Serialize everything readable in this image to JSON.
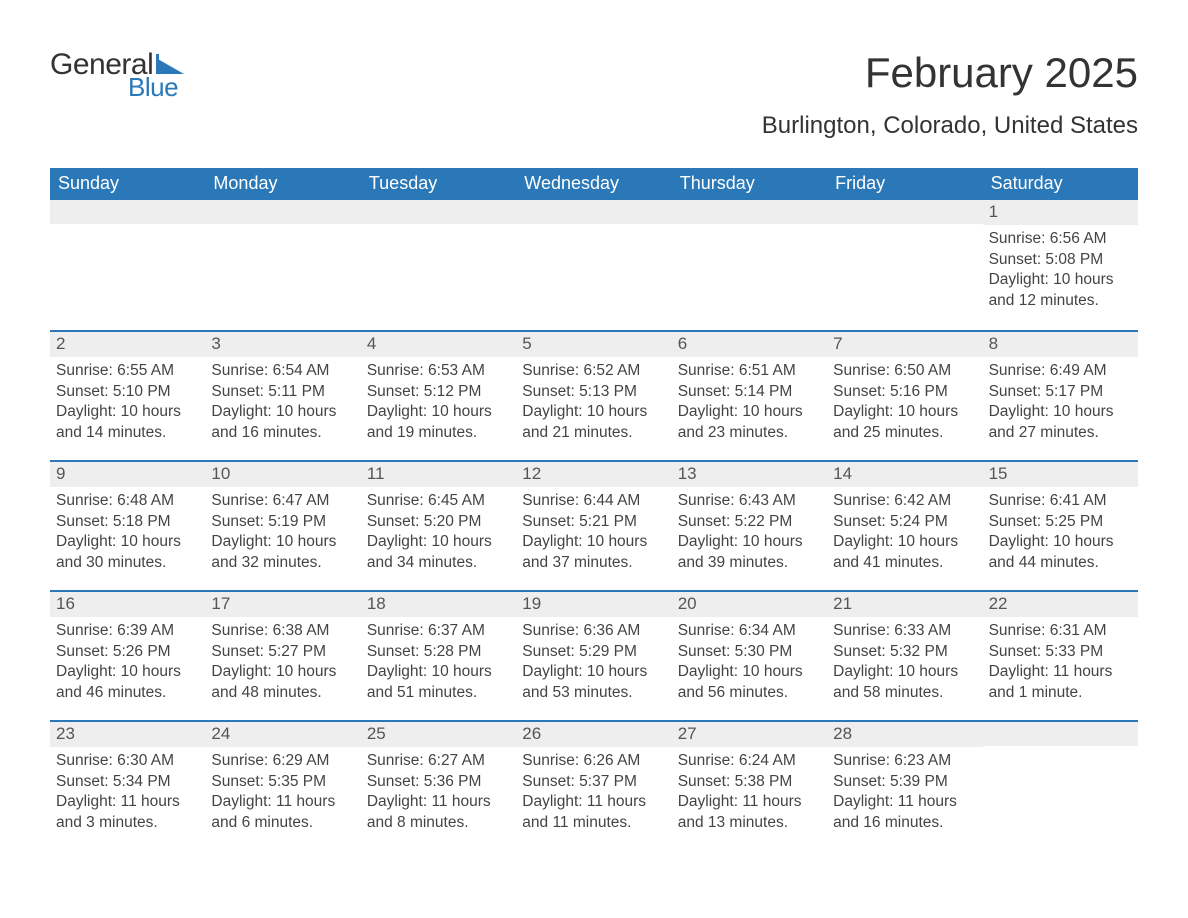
{
  "brand": {
    "text1": "General",
    "text2": "Blue"
  },
  "header": {
    "month_title": "February 2025",
    "location": "Burlington, Colorado, United States"
  },
  "colors": {
    "header_blue": "#2a78b8",
    "daynum_bg": "#eeeeee",
    "text_dark": "#333333",
    "background": "#ffffff"
  },
  "days_of_week": [
    "Sunday",
    "Monday",
    "Tuesday",
    "Wednesday",
    "Thursday",
    "Friday",
    "Saturday"
  ],
  "weeks": [
    [
      {
        "n": "",
        "sunrise": "",
        "sunset": "",
        "daylight": ""
      },
      {
        "n": "",
        "sunrise": "",
        "sunset": "",
        "daylight": ""
      },
      {
        "n": "",
        "sunrise": "",
        "sunset": "",
        "daylight": ""
      },
      {
        "n": "",
        "sunrise": "",
        "sunset": "",
        "daylight": ""
      },
      {
        "n": "",
        "sunrise": "",
        "sunset": "",
        "daylight": ""
      },
      {
        "n": "",
        "sunrise": "",
        "sunset": "",
        "daylight": ""
      },
      {
        "n": "1",
        "sunrise": "Sunrise: 6:56 AM",
        "sunset": "Sunset: 5:08 PM",
        "daylight": "Daylight: 10 hours and 12 minutes."
      }
    ],
    [
      {
        "n": "2",
        "sunrise": "Sunrise: 6:55 AM",
        "sunset": "Sunset: 5:10 PM",
        "daylight": "Daylight: 10 hours and 14 minutes."
      },
      {
        "n": "3",
        "sunrise": "Sunrise: 6:54 AM",
        "sunset": "Sunset: 5:11 PM",
        "daylight": "Daylight: 10 hours and 16 minutes."
      },
      {
        "n": "4",
        "sunrise": "Sunrise: 6:53 AM",
        "sunset": "Sunset: 5:12 PM",
        "daylight": "Daylight: 10 hours and 19 minutes."
      },
      {
        "n": "5",
        "sunrise": "Sunrise: 6:52 AM",
        "sunset": "Sunset: 5:13 PM",
        "daylight": "Daylight: 10 hours and 21 minutes."
      },
      {
        "n": "6",
        "sunrise": "Sunrise: 6:51 AM",
        "sunset": "Sunset: 5:14 PM",
        "daylight": "Daylight: 10 hours and 23 minutes."
      },
      {
        "n": "7",
        "sunrise": "Sunrise: 6:50 AM",
        "sunset": "Sunset: 5:16 PM",
        "daylight": "Daylight: 10 hours and 25 minutes."
      },
      {
        "n": "8",
        "sunrise": "Sunrise: 6:49 AM",
        "sunset": "Sunset: 5:17 PM",
        "daylight": "Daylight: 10 hours and 27 minutes."
      }
    ],
    [
      {
        "n": "9",
        "sunrise": "Sunrise: 6:48 AM",
        "sunset": "Sunset: 5:18 PM",
        "daylight": "Daylight: 10 hours and 30 minutes."
      },
      {
        "n": "10",
        "sunrise": "Sunrise: 6:47 AM",
        "sunset": "Sunset: 5:19 PM",
        "daylight": "Daylight: 10 hours and 32 minutes."
      },
      {
        "n": "11",
        "sunrise": "Sunrise: 6:45 AM",
        "sunset": "Sunset: 5:20 PM",
        "daylight": "Daylight: 10 hours and 34 minutes."
      },
      {
        "n": "12",
        "sunrise": "Sunrise: 6:44 AM",
        "sunset": "Sunset: 5:21 PM",
        "daylight": "Daylight: 10 hours and 37 minutes."
      },
      {
        "n": "13",
        "sunrise": "Sunrise: 6:43 AM",
        "sunset": "Sunset: 5:22 PM",
        "daylight": "Daylight: 10 hours and 39 minutes."
      },
      {
        "n": "14",
        "sunrise": "Sunrise: 6:42 AM",
        "sunset": "Sunset: 5:24 PM",
        "daylight": "Daylight: 10 hours and 41 minutes."
      },
      {
        "n": "15",
        "sunrise": "Sunrise: 6:41 AM",
        "sunset": "Sunset: 5:25 PM",
        "daylight": "Daylight: 10 hours and 44 minutes."
      }
    ],
    [
      {
        "n": "16",
        "sunrise": "Sunrise: 6:39 AM",
        "sunset": "Sunset: 5:26 PM",
        "daylight": "Daylight: 10 hours and 46 minutes."
      },
      {
        "n": "17",
        "sunrise": "Sunrise: 6:38 AM",
        "sunset": "Sunset: 5:27 PM",
        "daylight": "Daylight: 10 hours and 48 minutes."
      },
      {
        "n": "18",
        "sunrise": "Sunrise: 6:37 AM",
        "sunset": "Sunset: 5:28 PM",
        "daylight": "Daylight: 10 hours and 51 minutes."
      },
      {
        "n": "19",
        "sunrise": "Sunrise: 6:36 AM",
        "sunset": "Sunset: 5:29 PM",
        "daylight": "Daylight: 10 hours and 53 minutes."
      },
      {
        "n": "20",
        "sunrise": "Sunrise: 6:34 AM",
        "sunset": "Sunset: 5:30 PM",
        "daylight": "Daylight: 10 hours and 56 minutes."
      },
      {
        "n": "21",
        "sunrise": "Sunrise: 6:33 AM",
        "sunset": "Sunset: 5:32 PM",
        "daylight": "Daylight: 10 hours and 58 minutes."
      },
      {
        "n": "22",
        "sunrise": "Sunrise: 6:31 AM",
        "sunset": "Sunset: 5:33 PM",
        "daylight": "Daylight: 11 hours and 1 minute."
      }
    ],
    [
      {
        "n": "23",
        "sunrise": "Sunrise: 6:30 AM",
        "sunset": "Sunset: 5:34 PM",
        "daylight": "Daylight: 11 hours and 3 minutes."
      },
      {
        "n": "24",
        "sunrise": "Sunrise: 6:29 AM",
        "sunset": "Sunset: 5:35 PM",
        "daylight": "Daylight: 11 hours and 6 minutes."
      },
      {
        "n": "25",
        "sunrise": "Sunrise: 6:27 AM",
        "sunset": "Sunset: 5:36 PM",
        "daylight": "Daylight: 11 hours and 8 minutes."
      },
      {
        "n": "26",
        "sunrise": "Sunrise: 6:26 AM",
        "sunset": "Sunset: 5:37 PM",
        "daylight": "Daylight: 11 hours and 11 minutes."
      },
      {
        "n": "27",
        "sunrise": "Sunrise: 6:24 AM",
        "sunset": "Sunset: 5:38 PM",
        "daylight": "Daylight: 11 hours and 13 minutes."
      },
      {
        "n": "28",
        "sunrise": "Sunrise: 6:23 AM",
        "sunset": "Sunset: 5:39 PM",
        "daylight": "Daylight: 11 hours and 16 minutes."
      },
      {
        "n": "",
        "sunrise": "",
        "sunset": "",
        "daylight": ""
      }
    ]
  ]
}
